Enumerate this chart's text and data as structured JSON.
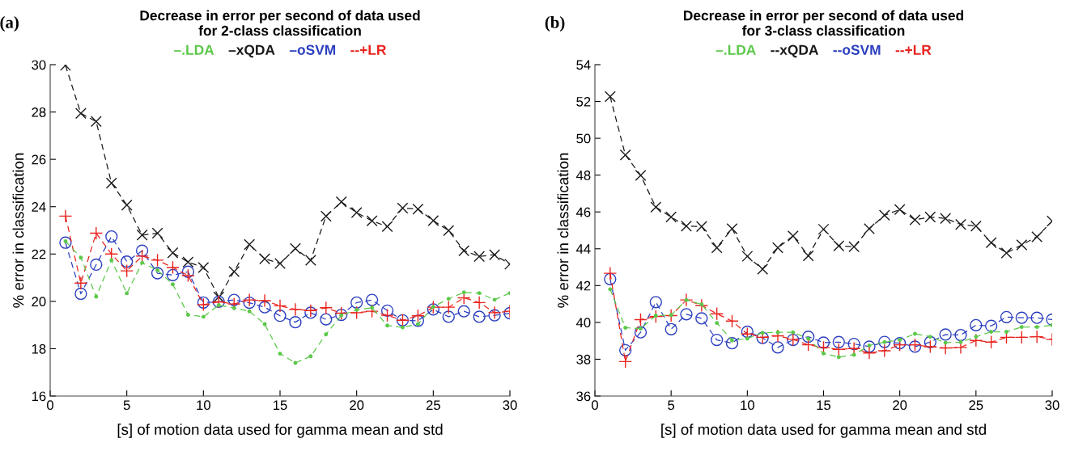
{
  "chart_data": [
    {
      "type": "line",
      "title": "Decrease in error per second of data used\nfor 2-class classification",
      "xlabel": "[s] of motion data used for gamma mean and std",
      "ylabel": "% error in classification",
      "annotations": [
        "(a)"
      ],
      "legend": "top",
      "line_style": "dashed",
      "grid": false,
      "x": [
        1,
        2,
        3,
        4,
        5,
        6,
        7,
        8,
        9,
        10,
        11,
        12,
        13,
        14,
        15,
        16,
        17,
        18,
        19,
        20,
        21,
        22,
        23,
        24,
        25,
        26,
        27,
        28,
        29,
        30
      ],
      "xlim": [
        0,
        30
      ],
      "xticks": [
        0,
        5,
        10,
        15,
        20,
        25,
        30
      ],
      "ylim": [
        16,
        30
      ],
      "yticks": [
        16,
        18,
        20,
        22,
        24,
        26,
        28,
        30
      ],
      "series": [
        {
          "name": "–.LDA",
          "color": "#5cc84a",
          "marker": "point",
          "values": [
            22.54,
            21.85,
            20.2,
            21.74,
            20.34,
            21.63,
            21.32,
            20.72,
            19.43,
            19.35,
            19.84,
            19.72,
            19.58,
            19.04,
            17.79,
            17.4,
            17.68,
            18.61,
            19.41,
            19.64,
            19.73,
            18.98,
            18.9,
            19.04,
            19.77,
            20.11,
            20.38,
            20.35,
            20.07,
            20.35
          ]
        },
        {
          "name": "–xQDA",
          "color": "#1a1a1a",
          "marker": "x",
          "values": [
            29.97,
            27.94,
            27.6,
            25.0,
            24.07,
            22.8,
            22.88,
            22.05,
            21.66,
            21.43,
            20.18,
            21.26,
            22.4,
            21.8,
            21.6,
            22.23,
            21.74,
            23.6,
            24.2,
            23.75,
            23.4,
            23.16,
            23.94,
            23.9,
            23.41,
            22.99,
            22.14,
            21.9,
            21.97,
            21.57
          ]
        },
        {
          "name": "–oSVM",
          "color": "#2b3fbf",
          "marker": "circle",
          "values": [
            22.48,
            20.32,
            21.55,
            22.74,
            21.68,
            22.14,
            21.19,
            21.11,
            21.25,
            19.95,
            19.98,
            20.06,
            19.94,
            19.75,
            19.39,
            19.12,
            19.52,
            19.24,
            19.43,
            19.95,
            20.06,
            19.61,
            19.2,
            19.18,
            19.66,
            19.35,
            19.58,
            19.35,
            19.41,
            19.5
          ]
        },
        {
          "name": "--+LR",
          "color": "#e8241f",
          "marker": "plus",
          "values": [
            23.6,
            20.77,
            22.88,
            22.0,
            21.29,
            21.91,
            21.74,
            21.43,
            21.09,
            19.86,
            19.98,
            19.89,
            20.06,
            20.03,
            19.81,
            19.66,
            19.61,
            19.73,
            19.5,
            19.52,
            19.58,
            19.41,
            19.2,
            19.39,
            19.75,
            19.75,
            20.15,
            19.95,
            19.52,
            19.58
          ]
        }
      ]
    },
    {
      "type": "line",
      "title": "Decrease in error per second of data used\nfor 3-class classification",
      "xlabel": "[s] of motion data used for gamma mean and std",
      "ylabel": "% error in classification",
      "annotations": [
        "(b)"
      ],
      "legend": "top",
      "line_style": "dashed",
      "grid": false,
      "x": [
        1,
        2,
        3,
        4,
        5,
        6,
        7,
        8,
        9,
        10,
        11,
        12,
        13,
        14,
        15,
        16,
        17,
        18,
        19,
        20,
        21,
        22,
        23,
        24,
        25,
        26,
        27,
        28,
        29,
        30
      ],
      "xlim": [
        0,
        30
      ],
      "xticks": [
        0,
        5,
        10,
        15,
        20,
        25,
        30
      ],
      "ylim": [
        36,
        54
      ],
      "yticks": [
        36,
        38,
        40,
        42,
        44,
        46,
        48,
        50,
        52,
        54
      ],
      "series": [
        {
          "name": "–.LDA",
          "color": "#5cc84a",
          "marker": "point",
          "values": [
            41.8,
            39.71,
            39.66,
            40.37,
            40.4,
            41.22,
            40.98,
            39.97,
            39.02,
            39.12,
            39.44,
            39.46,
            39.46,
            39.12,
            38.31,
            38.12,
            38.24,
            38.75,
            38.93,
            39.05,
            39.38,
            39.22,
            38.9,
            38.93,
            39.22,
            39.49,
            39.49,
            39.75,
            39.75,
            39.85
          ]
        },
        {
          "name": "--xQDA",
          "color": "#1a1a1a",
          "marker": "x",
          "values": [
            52.27,
            49.09,
            47.99,
            46.26,
            45.72,
            45.23,
            45.21,
            44.06,
            45.09,
            43.59,
            42.89,
            44.06,
            44.69,
            43.62,
            45.06,
            44.15,
            44.11,
            45.09,
            45.82,
            46.13,
            45.57,
            45.72,
            45.65,
            45.32,
            45.23,
            44.33,
            43.77,
            44.21,
            44.65,
            45.5
          ]
        },
        {
          "name": "--oSVM",
          "color": "#2b3fbf",
          "marker": "circle",
          "values": [
            42.35,
            38.49,
            39.46,
            41.1,
            39.63,
            40.44,
            40.22,
            39.05,
            38.87,
            39.49,
            39.16,
            38.64,
            39.05,
            39.22,
            38.9,
            38.93,
            38.83,
            38.68,
            38.94,
            38.87,
            38.68,
            38.93,
            39.34,
            39.31,
            39.85,
            39.81,
            40.29,
            40.25,
            40.25,
            40.15
          ]
        },
        {
          "name": "--+LR",
          "color": "#e8241f",
          "marker": "plus",
          "values": [
            42.67,
            37.87,
            40.15,
            40.32,
            40.37,
            41.22,
            40.92,
            40.47,
            40.07,
            39.37,
            39.19,
            39.27,
            39.08,
            38.78,
            38.64,
            38.53,
            38.58,
            38.34,
            38.46,
            38.78,
            38.78,
            38.68,
            38.61,
            38.64,
            39.02,
            38.93,
            39.19,
            39.19,
            39.22,
            39.08
          ]
        }
      ]
    }
  ]
}
